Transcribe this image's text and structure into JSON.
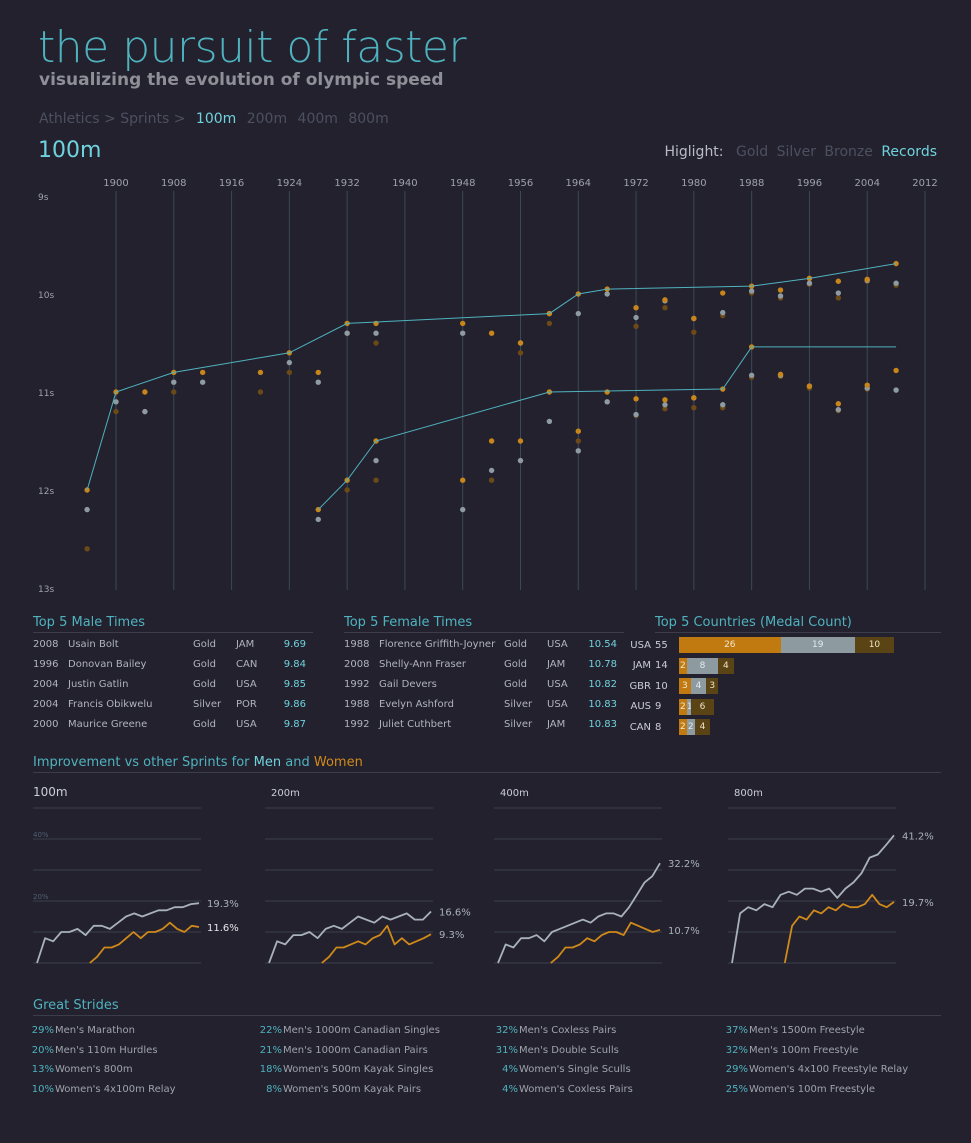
{
  "header": {
    "title": "the pursuit of faster",
    "subtitle": "visualizing the evolution of olympic speed"
  },
  "breadcrumb": {
    "path": "Athletics > Sprints >",
    "events": [
      "100m",
      "200m",
      "400m",
      "800m"
    ],
    "active": "100m"
  },
  "event_title": "100m",
  "highlight": {
    "label": "Higlight:",
    "options": [
      "Gold",
      "Silver",
      "Bronze",
      "Records"
    ],
    "active": "Records"
  },
  "colors": {
    "gold": "#c8861a",
    "silver": "#8e9ba2",
    "bronze": "#6b4a17",
    "accent": "#4fb3bf",
    "background": "#23212e"
  },
  "chart_data": [
    {
      "type": "scatter",
      "x_ticks": [
        "1900",
        "1908",
        "1916",
        "1924",
        "1932",
        "1940",
        "1948",
        "1956",
        "1964",
        "1972",
        "1980",
        "1988",
        "1996",
        "2004",
        "2012"
      ],
      "y_ticks": [
        "9s",
        "10s",
        "11s",
        "12s",
        "13s"
      ],
      "ylim": [
        9,
        13
      ],
      "xlim": [
        1896,
        2012
      ],
      "y_inverted": true,
      "grid": true,
      "series": [
        {
          "name": "Gold",
          "points": [
            [
              1896,
              12.0
            ],
            [
              1900,
              11.0
            ],
            [
              1904,
              11.0
            ],
            [
              1908,
              10.8
            ],
            [
              1912,
              10.8
            ],
            [
              1920,
              10.8
            ],
            [
              1924,
              10.6
            ],
            [
              1928,
              10.8
            ],
            [
              1932,
              10.3
            ],
            [
              1936,
              10.3
            ],
            [
              1948,
              10.3
            ],
            [
              1952,
              10.4
            ],
            [
              1956,
              10.5
            ],
            [
              1960,
              10.2
            ],
            [
              1964,
              10.0
            ],
            [
              1968,
              9.95
            ],
            [
              1972,
              10.14
            ],
            [
              1976,
              10.06
            ],
            [
              1980,
              10.25
            ],
            [
              1984,
              9.99
            ],
            [
              1988,
              9.92
            ],
            [
              1992,
              9.96
            ],
            [
              1996,
              9.84
            ],
            [
              2000,
              9.87
            ],
            [
              2004,
              9.85
            ],
            [
              2008,
              9.69
            ]
          ]
        },
        {
          "name": "Silver",
          "points": [
            [
              1896,
              12.2
            ],
            [
              1900,
              11.1
            ],
            [
              1904,
              11.2
            ],
            [
              1908,
              10.9
            ],
            [
              1912,
              10.9
            ],
            [
              1924,
              10.7
            ],
            [
              1928,
              10.9
            ],
            [
              1932,
              10.4
            ],
            [
              1936,
              10.4
            ],
            [
              1948,
              10.4
            ],
            [
              1956,
              10.5
            ],
            [
              1960,
              10.2
            ],
            [
              1964,
              10.2
            ],
            [
              1968,
              10.0
            ],
            [
              1972,
              10.24
            ],
            [
              1976,
              10.07
            ],
            [
              1980,
              10.25
            ],
            [
              1984,
              10.19
            ],
            [
              1988,
              9.97
            ],
            [
              1992,
              10.02
            ],
            [
              1996,
              9.89
            ],
            [
              2000,
              9.99
            ],
            [
              2004,
              9.86
            ],
            [
              2008,
              9.89
            ]
          ]
        },
        {
          "name": "Bronze",
          "points": [
            [
              1896,
              12.6
            ],
            [
              1900,
              11.2
            ],
            [
              1904,
              11.2
            ],
            [
              1908,
              11.0
            ],
            [
              1920,
              11.0
            ],
            [
              1924,
              10.8
            ],
            [
              1932,
              10.4
            ],
            [
              1936,
              10.5
            ],
            [
              1956,
              10.6
            ],
            [
              1960,
              10.3
            ],
            [
              1972,
              10.33
            ],
            [
              1976,
              10.14
            ],
            [
              1980,
              10.39
            ],
            [
              1984,
              10.22
            ],
            [
              1988,
              9.99
            ],
            [
              1992,
              10.04
            ],
            [
              1996,
              9.9
            ],
            [
              2000,
              10.04
            ],
            [
              2004,
              9.87
            ],
            [
              2008,
              9.91
            ]
          ]
        },
        {
          "name": "Gold",
          "points": [
            [
              1928,
              12.2
            ],
            [
              1932,
              11.9
            ],
            [
              1936,
              11.5
            ],
            [
              1948,
              11.9
            ],
            [
              1952,
              11.5
            ],
            [
              1956,
              11.5
            ],
            [
              1960,
              11.0
            ],
            [
              1964,
              11.4
            ],
            [
              1968,
              11.0
            ],
            [
              1972,
              11.07
            ],
            [
              1976,
              11.08
            ],
            [
              1980,
              11.06
            ],
            [
              1984,
              10.97
            ],
            [
              1988,
              10.54
            ],
            [
              1992,
              10.82
            ],
            [
              1996,
              10.94
            ],
            [
              2000,
              11.12
            ],
            [
              2004,
              10.93
            ],
            [
              2008,
              10.78
            ]
          ]
        },
        {
          "name": "Silver",
          "points": [
            [
              1928,
              12.3
            ],
            [
              1936,
              11.7
            ],
            [
              1948,
              12.2
            ],
            [
              1952,
              11.8
            ],
            [
              1956,
              11.7
            ],
            [
              1960,
              11.3
            ],
            [
              1964,
              11.6
            ],
            [
              1968,
              11.1
            ],
            [
              1972,
              11.23
            ],
            [
              1976,
              11.13
            ],
            [
              1980,
              11.06
            ],
            [
              1984,
              11.13
            ],
            [
              1988,
              10.83
            ],
            [
              1992,
              10.83
            ],
            [
              1996,
              10.94
            ],
            [
              2000,
              11.18
            ],
            [
              2004,
              10.96
            ],
            [
              2008,
              10.98
            ]
          ]
        },
        {
          "name": "Bronze",
          "points": [
            [
              1932,
              12.0
            ],
            [
              1936,
              11.9
            ],
            [
              1952,
              11.9
            ],
            [
              1956,
              11.7
            ],
            [
              1960,
              11.3
            ],
            [
              1964,
              11.5
            ],
            [
              1968,
              11.1
            ],
            [
              1972,
              11.24
            ],
            [
              1976,
              11.17
            ],
            [
              1980,
              11.16
            ],
            [
              1984,
              11.16
            ],
            [
              1988,
              10.85
            ],
            [
              1992,
              10.84
            ],
            [
              1996,
              10.96
            ],
            [
              2000,
              11.19
            ],
            [
              2004,
              10.97
            ],
            [
              2008,
              10.98
            ]
          ]
        },
        {
          "name": "Records",
          "type": "line",
          "points": [
            [
              1896,
              12.0
            ],
            [
              1900,
              11.0
            ],
            [
              1908,
              10.8
            ],
            [
              1924,
              10.6
            ],
            [
              1932,
              10.3
            ],
            [
              1960,
              10.2
            ],
            [
              1964,
              10.0
            ],
            [
              1968,
              9.95
            ],
            [
              1988,
              9.92
            ],
            [
              1996,
              9.84
            ],
            [
              2008,
              9.69
            ]
          ]
        },
        {
          "name": "Records",
          "type": "line",
          "points": [
            [
              1928,
              12.2
            ],
            [
              1932,
              11.9
            ],
            [
              1936,
              11.5
            ],
            [
              1960,
              11.0
            ],
            [
              1984,
              10.97
            ],
            [
              1988,
              10.54
            ],
            [
              2008,
              10.54
            ]
          ]
        }
      ]
    },
    {
      "type": "line",
      "title": "100m",
      "ylim": [
        0,
        55
      ],
      "y_ticks": [
        "20%",
        "40%"
      ],
      "series": [
        {
          "name": "Men",
          "values": [
            0,
            8,
            7,
            10,
            10,
            11,
            9,
            12,
            12,
            11,
            13,
            15,
            16,
            15,
            16,
            17,
            17,
            18,
            18,
            19,
            19.3
          ],
          "end_label": "19.3%"
        },
        {
          "name": "Women",
          "start": 0.33,
          "values": [
            0,
            2,
            5,
            5,
            6,
            8,
            10,
            8,
            10,
            10,
            11,
            13,
            11,
            10,
            12,
            11.6
          ],
          "end_label": "11.6%"
        }
      ]
    },
    {
      "type": "line",
      "title": "200m",
      "ylim": [
        0,
        55
      ],
      "series": [
        {
          "name": "Men",
          "values": [
            0,
            7,
            6,
            9,
            9,
            10,
            8,
            11,
            12,
            11,
            13,
            15,
            14,
            13,
            15,
            14,
            15,
            16,
            14,
            14,
            16.6
          ],
          "end_label": "16.6%"
        },
        {
          "name": "Women",
          "start": 0.33,
          "values": [
            0,
            2,
            5,
            5,
            6,
            7,
            6,
            8,
            9,
            12,
            6,
            8,
            6,
            7,
            8,
            9.3
          ],
          "end_label": "9.3%"
        }
      ]
    },
    {
      "type": "line",
      "title": "400m",
      "ylim": [
        0,
        55
      ],
      "series": [
        {
          "name": "Men",
          "values": [
            0,
            6,
            5,
            8,
            8,
            9,
            7,
            10,
            11,
            12,
            13,
            14,
            13,
            15,
            16,
            16,
            15,
            18,
            22,
            26,
            28,
            32.2
          ],
          "end_label": "32.2%"
        },
        {
          "name": "Women",
          "start": 0.33,
          "values": [
            0,
            2,
            5,
            5,
            6,
            8,
            7,
            9,
            10,
            10,
            9,
            13,
            12,
            11,
            10,
            10.7
          ],
          "end_label": "10.7%"
        }
      ]
    },
    {
      "type": "line",
      "title": "800m",
      "ylim": [
        0,
        55
      ],
      "series": [
        {
          "name": "Men",
          "values": [
            0,
            16,
            18,
            17,
            19,
            18,
            22,
            23,
            22,
            24,
            24,
            23,
            24,
            21,
            24,
            26,
            29,
            34,
            35,
            38,
            41.2
          ],
          "end_label": "41.2%"
        },
        {
          "name": "Women",
          "start": 0.33,
          "values": [
            0,
            12,
            15,
            14,
            17,
            16,
            18,
            17,
            19,
            18,
            18,
            19,
            22,
            19,
            18,
            19.7
          ],
          "end_label": "19.7%"
        }
      ]
    }
  ],
  "top_male": {
    "title": "Top 5 Male Times",
    "rows": [
      {
        "year": "2008",
        "name": "Usain Bolt",
        "medal": "Gold",
        "country": "JAM",
        "time": "9.69"
      },
      {
        "year": "1996",
        "name": "Donovan Bailey",
        "medal": "Gold",
        "country": "CAN",
        "time": "9.84"
      },
      {
        "year": "2004",
        "name": "Justin Gatlin",
        "medal": "Gold",
        "country": "USA",
        "time": "9.85"
      },
      {
        "year": "2004",
        "name": "Francis Obikwelu",
        "medal": "Silver",
        "country": "POR",
        "time": "9.86"
      },
      {
        "year": "2000",
        "name": "Maurice Greene",
        "medal": "Gold",
        "country": "USA",
        "time": "9.87"
      }
    ]
  },
  "top_female": {
    "title": "Top 5 Female Times",
    "rows": [
      {
        "year": "1988",
        "name": "Florence Griffith-Joyner",
        "medal": "Gold",
        "country": "USA",
        "time": "10.54"
      },
      {
        "year": "2008",
        "name": "Shelly-Ann Fraser",
        "medal": "Gold",
        "country": "JAM",
        "time": "10.78"
      },
      {
        "year": "1992",
        "name": "Gail Devers",
        "medal": "Gold",
        "country": "USA",
        "time": "10.82"
      },
      {
        "year": "1988",
        "name": "Evelyn Ashford",
        "medal": "Silver",
        "country": "USA",
        "time": "10.83"
      },
      {
        "year": "1992",
        "name": "Juliet Cuthbert",
        "medal": "Silver",
        "country": "JAM",
        "time": "10.83"
      }
    ]
  },
  "top_countries": {
    "title": "Top 5 Countries (Medal Count)",
    "rows": [
      {
        "code": "USA",
        "total": "55",
        "gold": 26,
        "silver": 19,
        "bronze": 10
      },
      {
        "code": "JAM",
        "total": "14",
        "gold": 2,
        "silver": 8,
        "bronze": 4
      },
      {
        "code": "GBR",
        "total": "10",
        "gold": 3,
        "silver": 4,
        "bronze": 3
      },
      {
        "code": "AUS",
        "total": "9",
        "gold": 2,
        "silver": 1,
        "bronze": 6
      },
      {
        "code": "CAN",
        "total": "8",
        "gold": 2,
        "silver": 2,
        "bronze": 4
      }
    ]
  },
  "improvement": {
    "title_prefix": "Improvement vs other Sprints for",
    "men": "Men",
    "and": "and",
    "women": "Women"
  },
  "great_strides": {
    "title": "Great Strides",
    "columns": [
      [
        {
          "pct": "29%",
          "event": "Men's Marathon"
        },
        {
          "pct": "20%",
          "event": "Men's 110m Hurdles"
        },
        {
          "pct": "13%",
          "event": "Women's 800m"
        },
        {
          "pct": "10%",
          "event": "Women's 4x100m Relay"
        }
      ],
      [
        {
          "pct": "22%",
          "event": "Men's 1000m Canadian Singles"
        },
        {
          "pct": "21%",
          "event": "Men's 1000m Canadian Pairs"
        },
        {
          "pct": "18%",
          "event": "Women's 500m Kayak Singles"
        },
        {
          "pct": "8%",
          "event": "Women's 500m Kayak Pairs"
        }
      ],
      [
        {
          "pct": "32%",
          "event": "Men's Coxless Pairs"
        },
        {
          "pct": "31%",
          "event": "Men's Double Sculls"
        },
        {
          "pct": "4%",
          "event": "Women's Single Sculls"
        },
        {
          "pct": "4%",
          "event": "Women's Coxless Pairs"
        }
      ],
      [
        {
          "pct": "37%",
          "event": "Men's 1500m Freestyle"
        },
        {
          "pct": "32%",
          "event": "Men's 100m Freestyle"
        },
        {
          "pct": "29%",
          "event": "Women's 4x100 Freestyle Relay"
        },
        {
          "pct": "25%",
          "event": "Women's 100m Freestyle"
        }
      ]
    ]
  }
}
